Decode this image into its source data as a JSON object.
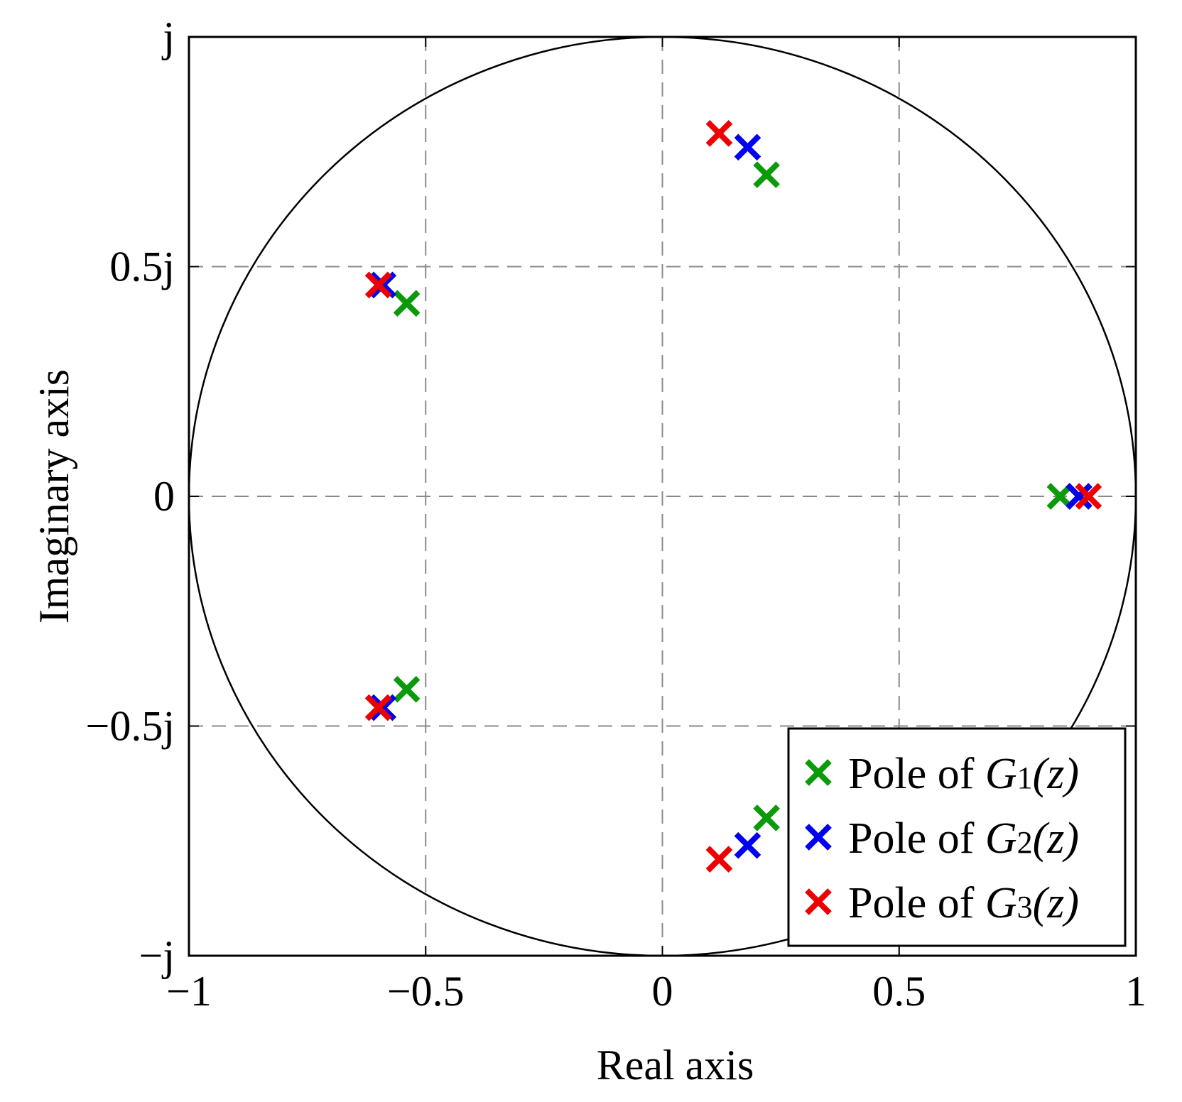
{
  "chart_data": {
    "type": "scatter",
    "title": "",
    "xlabel": "Real axis",
    "ylabel": "Imaginary axis",
    "xlim": [
      -1,
      1
    ],
    "ylim": [
      -1,
      1
    ],
    "grid": true,
    "unit_circle": true,
    "x_ticks": [
      {
        "value": -1,
        "label": "−1"
      },
      {
        "value": -0.5,
        "label": "−0.5"
      },
      {
        "value": 0,
        "label": "0"
      },
      {
        "value": 0.5,
        "label": "0.5"
      },
      {
        "value": 1,
        "label": "1"
      }
    ],
    "y_ticks": [
      {
        "value": 1,
        "label": "j"
      },
      {
        "value": 0.5,
        "label": "0.5j"
      },
      {
        "value": 0,
        "label": "0"
      },
      {
        "value": -0.5,
        "label": "−0.5j"
      },
      {
        "value": -1,
        "label": "−j"
      }
    ],
    "legend_position": "bottom-right",
    "series": [
      {
        "name": "Pole of G1(z)",
        "legend_prefix": "Pole of ",
        "legend_symbol": "G",
        "legend_sub": "1",
        "legend_arg": "(z)",
        "color": "#0a9a0a",
        "marker": "x",
        "points": [
          {
            "x": 0.22,
            "y": 0.7
          },
          {
            "x": 0.22,
            "y": -0.7
          },
          {
            "x": -0.54,
            "y": 0.42
          },
          {
            "x": -0.54,
            "y": -0.42
          },
          {
            "x": 0.84,
            "y": 0.0
          }
        ]
      },
      {
        "name": "Pole of G2(z)",
        "legend_prefix": "Pole of ",
        "legend_symbol": "G",
        "legend_sub": "2",
        "legend_arg": "(z)",
        "color": "#0000ee",
        "marker": "x",
        "points": [
          {
            "x": 0.18,
            "y": 0.76
          },
          {
            "x": 0.18,
            "y": -0.76
          },
          {
            "x": -0.59,
            "y": 0.46
          },
          {
            "x": -0.59,
            "y": -0.46
          },
          {
            "x": 0.88,
            "y": 0.0
          }
        ]
      },
      {
        "name": "Pole of G3(z)",
        "legend_prefix": "Pole of ",
        "legend_symbol": "G",
        "legend_sub": "3",
        "legend_arg": "(z)",
        "color": "#ee0000",
        "marker": "x",
        "points": [
          {
            "x": 0.12,
            "y": 0.79
          },
          {
            "x": 0.12,
            "y": -0.79
          },
          {
            "x": -0.6,
            "y": 0.46
          },
          {
            "x": -0.6,
            "y": -0.46
          },
          {
            "x": 0.9,
            "y": 0.0
          }
        ]
      }
    ]
  }
}
